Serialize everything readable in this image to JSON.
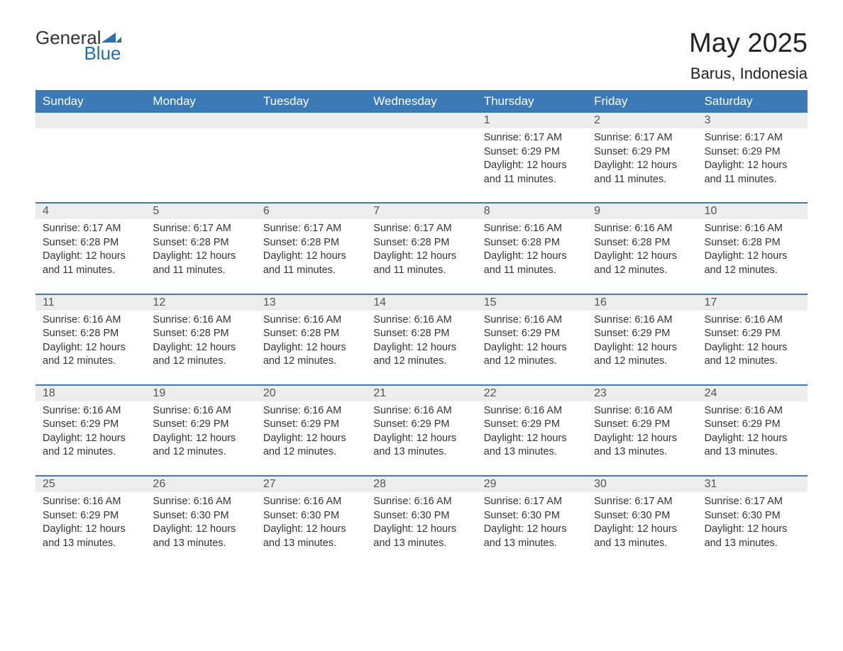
{
  "logo": {
    "text1": "General",
    "text2": "Blue",
    "color1": "#333333",
    "color2": "#1f6fb2",
    "mark_color": "#2a6fb0"
  },
  "title": {
    "month": "May 2025",
    "location": "Barus, Indonesia"
  },
  "colors": {
    "header_bg": "#3b79b7",
    "header_text": "#ffffff",
    "daybar_bg": "#ededed",
    "daybar_text": "#555555",
    "body_text": "#333333",
    "rule": "#3b79b7",
    "page_bg": "#ffffff"
  },
  "day_names": [
    "Sunday",
    "Monday",
    "Tuesday",
    "Wednesday",
    "Thursday",
    "Friday",
    "Saturday"
  ],
  "weeks": [
    {
      "nums": [
        "",
        "",
        "",
        "",
        "1",
        "2",
        "3"
      ],
      "cells": [
        null,
        null,
        null,
        null,
        {
          "sunrise": "6:17 AM",
          "sunset": "6:29 PM",
          "daylight": "12 hours and 11 minutes."
        },
        {
          "sunrise": "6:17 AM",
          "sunset": "6:29 PM",
          "daylight": "12 hours and 11 minutes."
        },
        {
          "sunrise": "6:17 AM",
          "sunset": "6:29 PM",
          "daylight": "12 hours and 11 minutes."
        }
      ]
    },
    {
      "nums": [
        "4",
        "5",
        "6",
        "7",
        "8",
        "9",
        "10"
      ],
      "cells": [
        {
          "sunrise": "6:17 AM",
          "sunset": "6:28 PM",
          "daylight": "12 hours and 11 minutes."
        },
        {
          "sunrise": "6:17 AM",
          "sunset": "6:28 PM",
          "daylight": "12 hours and 11 minutes."
        },
        {
          "sunrise": "6:17 AM",
          "sunset": "6:28 PM",
          "daylight": "12 hours and 11 minutes."
        },
        {
          "sunrise": "6:17 AM",
          "sunset": "6:28 PM",
          "daylight": "12 hours and 11 minutes."
        },
        {
          "sunrise": "6:16 AM",
          "sunset": "6:28 PM",
          "daylight": "12 hours and 11 minutes."
        },
        {
          "sunrise": "6:16 AM",
          "sunset": "6:28 PM",
          "daylight": "12 hours and 12 minutes."
        },
        {
          "sunrise": "6:16 AM",
          "sunset": "6:28 PM",
          "daylight": "12 hours and 12 minutes."
        }
      ]
    },
    {
      "nums": [
        "11",
        "12",
        "13",
        "14",
        "15",
        "16",
        "17"
      ],
      "cells": [
        {
          "sunrise": "6:16 AM",
          "sunset": "6:28 PM",
          "daylight": "12 hours and 12 minutes."
        },
        {
          "sunrise": "6:16 AM",
          "sunset": "6:28 PM",
          "daylight": "12 hours and 12 minutes."
        },
        {
          "sunrise": "6:16 AM",
          "sunset": "6:28 PM",
          "daylight": "12 hours and 12 minutes."
        },
        {
          "sunrise": "6:16 AM",
          "sunset": "6:28 PM",
          "daylight": "12 hours and 12 minutes."
        },
        {
          "sunrise": "6:16 AM",
          "sunset": "6:29 PM",
          "daylight": "12 hours and 12 minutes."
        },
        {
          "sunrise": "6:16 AM",
          "sunset": "6:29 PM",
          "daylight": "12 hours and 12 minutes."
        },
        {
          "sunrise": "6:16 AM",
          "sunset": "6:29 PM",
          "daylight": "12 hours and 12 minutes."
        }
      ]
    },
    {
      "nums": [
        "18",
        "19",
        "20",
        "21",
        "22",
        "23",
        "24"
      ],
      "cells": [
        {
          "sunrise": "6:16 AM",
          "sunset": "6:29 PM",
          "daylight": "12 hours and 12 minutes."
        },
        {
          "sunrise": "6:16 AM",
          "sunset": "6:29 PM",
          "daylight": "12 hours and 12 minutes."
        },
        {
          "sunrise": "6:16 AM",
          "sunset": "6:29 PM",
          "daylight": "12 hours and 12 minutes."
        },
        {
          "sunrise": "6:16 AM",
          "sunset": "6:29 PM",
          "daylight": "12 hours and 13 minutes."
        },
        {
          "sunrise": "6:16 AM",
          "sunset": "6:29 PM",
          "daylight": "12 hours and 13 minutes."
        },
        {
          "sunrise": "6:16 AM",
          "sunset": "6:29 PM",
          "daylight": "12 hours and 13 minutes."
        },
        {
          "sunrise": "6:16 AM",
          "sunset": "6:29 PM",
          "daylight": "12 hours and 13 minutes."
        }
      ]
    },
    {
      "nums": [
        "25",
        "26",
        "27",
        "28",
        "29",
        "30",
        "31"
      ],
      "cells": [
        {
          "sunrise": "6:16 AM",
          "sunset": "6:29 PM",
          "daylight": "12 hours and 13 minutes."
        },
        {
          "sunrise": "6:16 AM",
          "sunset": "6:30 PM",
          "daylight": "12 hours and 13 minutes."
        },
        {
          "sunrise": "6:16 AM",
          "sunset": "6:30 PM",
          "daylight": "12 hours and 13 minutes."
        },
        {
          "sunrise": "6:16 AM",
          "sunset": "6:30 PM",
          "daylight": "12 hours and 13 minutes."
        },
        {
          "sunrise": "6:17 AM",
          "sunset": "6:30 PM",
          "daylight": "12 hours and 13 minutes."
        },
        {
          "sunrise": "6:17 AM",
          "sunset": "6:30 PM",
          "daylight": "12 hours and 13 minutes."
        },
        {
          "sunrise": "6:17 AM",
          "sunset": "6:30 PM",
          "daylight": "12 hours and 13 minutes."
        }
      ]
    }
  ],
  "labels": {
    "sunrise": "Sunrise: ",
    "sunset": "Sunset: ",
    "daylight": "Daylight: "
  }
}
